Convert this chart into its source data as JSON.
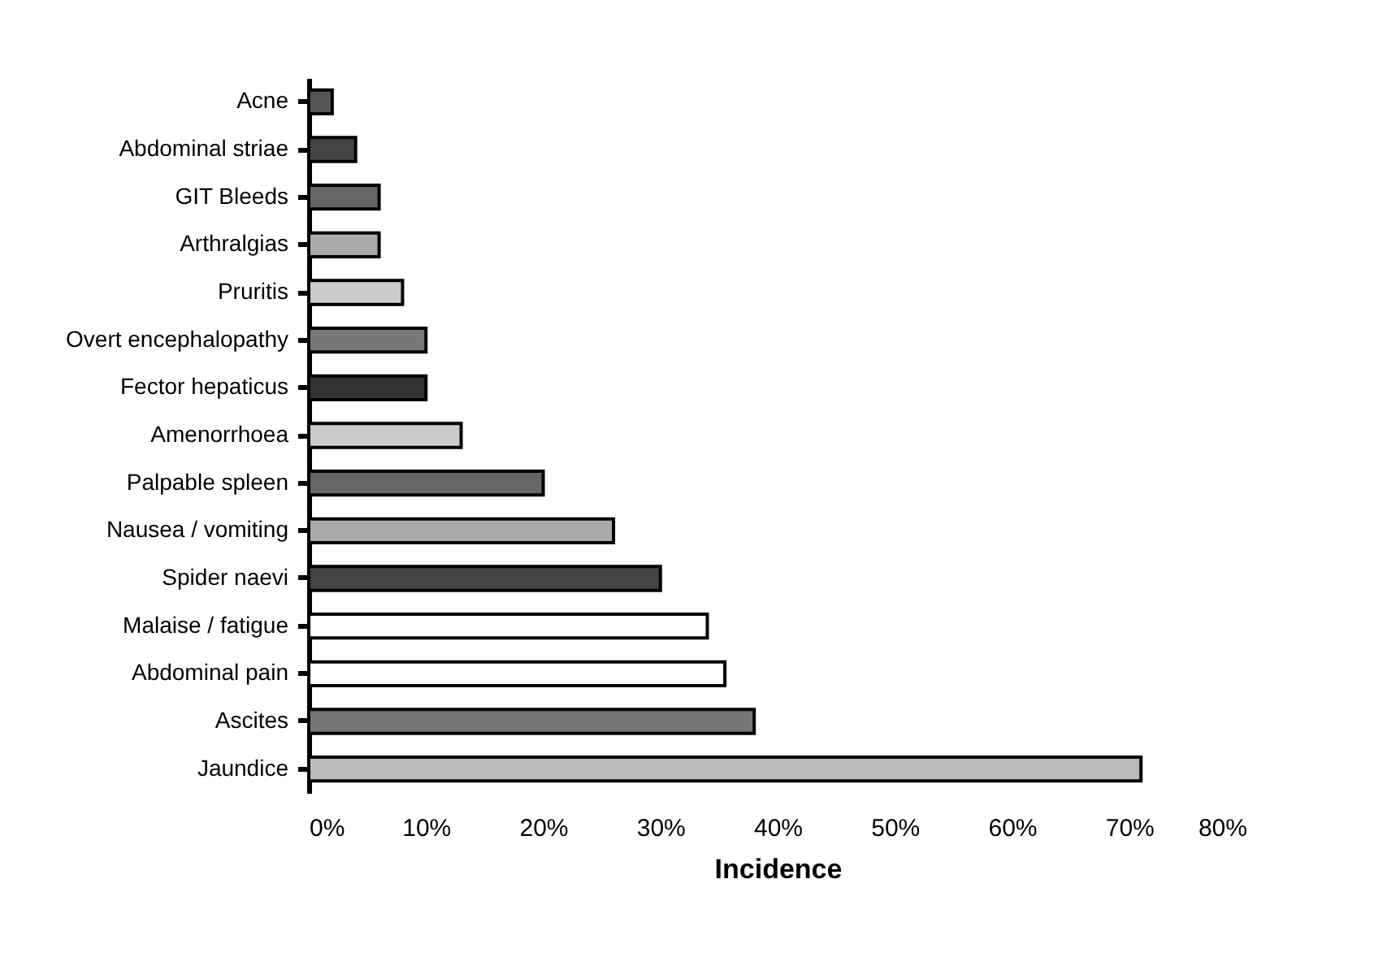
{
  "chart_data": {
    "type": "bar",
    "orientation": "horizontal",
    "xlabel": "Incidence",
    "categories": [
      "Acne",
      "Abdominal striae",
      "GIT Bleeds",
      "Arthralgias",
      "Pruritis",
      "Overt encephalopathy",
      "Fector hepaticus",
      "Amenorrhoea",
      "Palpable spleen",
      "Nausea / vomiting",
      "Spider naevi",
      "Malaise / fatigue",
      "Abdominal pain",
      "Ascites",
      "Jaundice"
    ],
    "values": [
      2,
      4,
      6,
      6,
      8,
      10,
      10,
      13,
      20,
      26,
      30,
      34,
      35.5,
      38,
      71
    ],
    "colors": [
      "#555555",
      "#444444",
      "#666666",
      "#aaaaaa",
      "#cccccc",
      "#777777",
      "#333333",
      "#cccccc",
      "#666666",
      "#aaaaaa",
      "#444444",
      "#ffffff",
      "#ffffff",
      "#777777",
      "#bbbbbb"
    ],
    "xlim": [
      0,
      80
    ],
    "xticks": [
      {
        "value": 0,
        "label": "0%"
      },
      {
        "value": 10,
        "label": "10%"
      },
      {
        "value": 20,
        "label": "20%"
      },
      {
        "value": 30,
        "label": "30%"
      },
      {
        "value": 40,
        "label": "40%"
      },
      {
        "value": 50,
        "label": "50%"
      },
      {
        "value": 60,
        "label": "60%"
      },
      {
        "value": 70,
        "label": "70%"
      },
      {
        "value": 80,
        "label": "80%"
      }
    ],
    "grid": false
  }
}
